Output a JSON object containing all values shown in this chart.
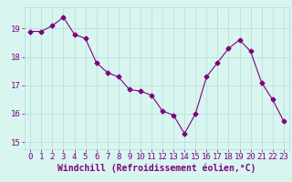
{
  "x": [
    0,
    1,
    2,
    3,
    4,
    5,
    6,
    7,
    8,
    9,
    10,
    11,
    12,
    13,
    14,
    15,
    16,
    17,
    18,
    19,
    20,
    21,
    22,
    23
  ],
  "y": [
    18.9,
    18.9,
    19.1,
    19.4,
    18.8,
    18.65,
    17.8,
    17.45,
    17.3,
    16.85,
    16.8,
    16.65,
    16.1,
    15.95,
    15.3,
    16.0,
    17.3,
    17.8,
    18.3,
    18.6,
    18.2,
    17.1,
    16.5,
    15.75
  ],
  "line_color": "#800080",
  "marker": "D",
  "markersize": 2.5,
  "linewidth": 0.8,
  "background_color": "#d8f5f0",
  "grid_color": "#b0ddd8",
  "xlabel": "Windchill (Refroidissement éolien,°C)",
  "xlabel_color": "#800080",
  "xlabel_fontsize": 7,
  "tick_color": "#800080",
  "tick_fontsize": 6.5,
  "ylim": [
    14.75,
    19.75
  ],
  "yticks": [
    15,
    16,
    17,
    18,
    19
  ],
  "xlim": [
    -0.5,
    23.5
  ],
  "xticks": [
    0,
    1,
    2,
    3,
    4,
    5,
    6,
    7,
    8,
    9,
    10,
    11,
    12,
    13,
    14,
    15,
    16,
    17,
    18,
    19,
    20,
    21,
    22,
    23
  ]
}
